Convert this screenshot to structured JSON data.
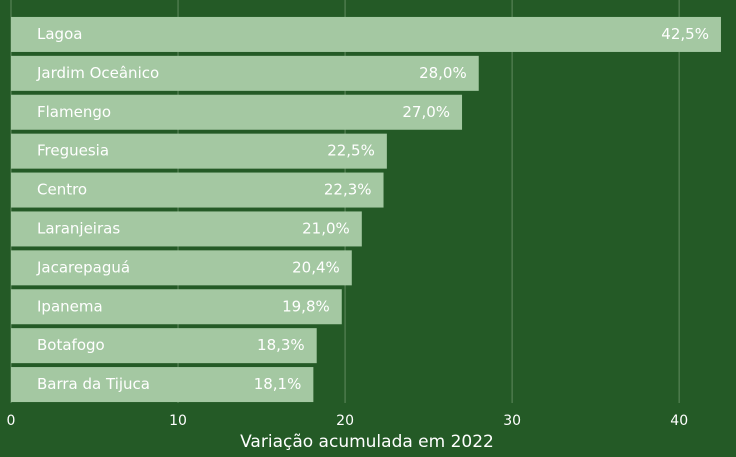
{
  "chart_data": {
    "type": "barh",
    "x_label": "Variação acumulada em 2022",
    "categories": [
      "Lagoa",
      "Jardim Oceânico",
      "Flamengo",
      "Freguesia",
      "Centro",
      "Laranjeiras",
      "Jacarepaguá",
      "Ipanema",
      "Botafogo",
      "Barra da Tijuca"
    ],
    "values": [
      42.5,
      28.0,
      27.0,
      22.5,
      22.3,
      21.0,
      20.4,
      19.8,
      18.3,
      18.1
    ],
    "value_labels": [
      "42,5%",
      "28,0%",
      "27,0%",
      "22,5%",
      "22,3%",
      "21,0%",
      "20,4%",
      "19,8%",
      "18,3%",
      "18,1%"
    ],
    "color": "#a4c8a2",
    "xlim": [
      0,
      43.4
    ],
    "xticks": [
      0,
      10,
      20,
      30,
      40
    ],
    "grid": true
  }
}
